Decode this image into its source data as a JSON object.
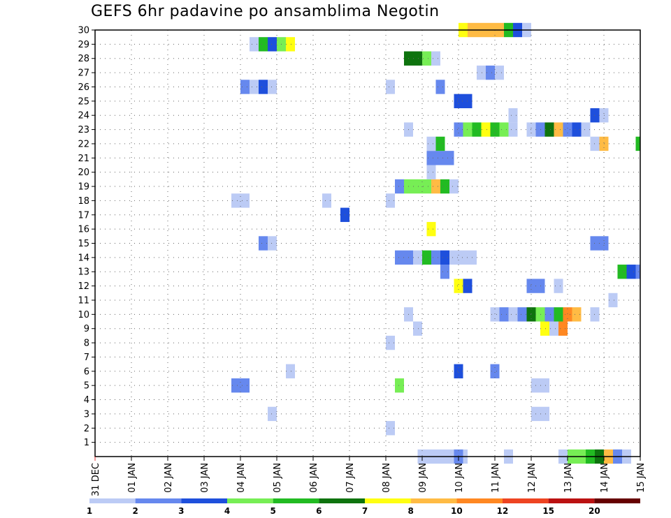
{
  "chart_data": {
    "type": "heatmap",
    "title": "GEFS 6hr padavine po ansamblima Negotin",
    "xlabel": "",
    "ylabel": "",
    "x_range": [
      "31 DEC",
      "15 JAN"
    ],
    "y_range": [
      0,
      30
    ],
    "grid": true,
    "x_ticks": [
      {
        "day": 0,
        "label": "31 DEC"
      },
      {
        "day": 1,
        "label": "01 JAN"
      },
      {
        "day": 2,
        "label": "02 JAN"
      },
      {
        "day": 3,
        "label": "03 JAN"
      },
      {
        "day": 4,
        "label": "04 JAN"
      },
      {
        "day": 5,
        "label": "05 JAN"
      },
      {
        "day": 6,
        "label": "06 JAN"
      },
      {
        "day": 7,
        "label": "07 JAN"
      },
      {
        "day": 8,
        "label": "08 JAN"
      },
      {
        "day": 9,
        "label": "09 JAN"
      },
      {
        "day": 10,
        "label": "10 JAN"
      },
      {
        "day": 11,
        "label": "11 JAN"
      },
      {
        "day": 12,
        "label": "12 JAN"
      },
      {
        "day": 13,
        "label": "13 JAN"
      },
      {
        "day": 14,
        "label": "14 JAN"
      },
      {
        "day": 15,
        "label": "15 JAN"
      }
    ],
    "y_ticks": [
      1,
      2,
      3,
      4,
      5,
      6,
      7,
      8,
      9,
      10,
      11,
      12,
      13,
      14,
      15,
      16,
      17,
      18,
      19,
      20,
      21,
      22,
      23,
      24,
      25,
      26,
      27,
      28,
      29,
      30
    ],
    "legend": {
      "placement": "bottom",
      "colors": [
        "#bccbf5",
        "#6688ee",
        "#1e4fdc",
        "#77ee55",
        "#22bb22",
        "#0e730e",
        "#ffff11",
        "#ffbb44",
        "#ff8822",
        "#ee4422",
        "#bb1111",
        "#660000"
      ],
      "labels": [
        "1",
        "2",
        "3",
        "4",
        "5",
        "6",
        "7",
        "8",
        "10",
        "12",
        "15",
        "20"
      ]
    },
    "series": [
      {
        "member": 0,
        "values": [
          [
            8.875,
            9.125,
            1
          ],
          [
            9.125,
            9.875,
            1
          ],
          [
            9.875,
            10.125,
            2
          ],
          [
            10.125,
            10.25,
            1
          ],
          [
            11.25,
            11.5,
            1
          ],
          [
            12.75,
            13,
            1
          ],
          [
            13,
            13.5,
            4
          ],
          [
            13.5,
            13.75,
            5
          ],
          [
            13.75,
            14,
            6
          ],
          [
            14,
            14.25,
            8
          ],
          [
            14.25,
            14.5,
            2
          ],
          [
            14.5,
            14.75,
            1
          ]
        ]
      },
      {
        "member": 2,
        "values": [
          [
            8,
            8.25,
            1
          ]
        ]
      },
      {
        "member": 3,
        "values": [
          [
            4.75,
            5,
            1
          ],
          [
            12,
            12.5,
            1
          ]
        ]
      },
      {
        "member": 5,
        "values": [
          [
            3.75,
            4.25,
            2
          ],
          [
            8.25,
            8.5,
            4
          ],
          [
            12,
            12.5,
            1
          ]
        ]
      },
      {
        "member": 6,
        "values": [
          [
            5.25,
            5.5,
            1
          ],
          [
            9.875,
            10.125,
            3
          ],
          [
            10.875,
            11.125,
            2
          ]
        ]
      },
      {
        "member": 8,
        "values": [
          [
            8,
            8.25,
            1
          ]
        ]
      },
      {
        "member": 9,
        "values": [
          [
            8.75,
            9,
            1
          ],
          [
            12.25,
            12.5,
            7
          ],
          [
            12.5,
            12.75,
            1
          ],
          [
            12.75,
            13,
            9
          ]
        ]
      },
      {
        "member": 10,
        "values": [
          [
            8.5,
            8.75,
            1
          ],
          [
            10.875,
            11.125,
            1
          ],
          [
            11.125,
            11.375,
            2
          ],
          [
            11.375,
            11.625,
            1
          ],
          [
            11.625,
            11.875,
            2
          ],
          [
            11.875,
            12.125,
            6
          ],
          [
            12.125,
            12.375,
            4
          ],
          [
            12.375,
            12.625,
            2
          ],
          [
            12.625,
            12.875,
            5
          ],
          [
            12.875,
            13.125,
            9
          ],
          [
            13.125,
            13.375,
            8
          ],
          [
            13.625,
            13.875,
            1
          ]
        ]
      },
      {
        "member": 11,
        "values": [
          [
            14.125,
            14.375,
            1
          ]
        ]
      },
      {
        "member": 12,
        "values": [
          [
            9.875,
            10.125,
            7
          ],
          [
            10.125,
            10.375,
            3
          ],
          [
            11.875,
            12.375,
            2
          ],
          [
            12.625,
            12.875,
            1
          ]
        ]
      },
      {
        "member": 13,
        "values": [
          [
            9.5,
            9.75,
            2
          ],
          [
            14.375,
            14.625,
            5
          ],
          [
            14.625,
            14.875,
            3
          ],
          [
            14.875,
            15,
            2
          ]
        ]
      },
      {
        "member": 14,
        "values": [
          [
            8.25,
            8.75,
            2
          ],
          [
            8.75,
            9,
            1
          ],
          [
            9,
            9.25,
            5
          ],
          [
            9.25,
            9.5,
            2
          ],
          [
            9.5,
            9.75,
            3
          ],
          [
            9.75,
            10.5,
            1
          ]
        ]
      },
      {
        "member": 15,
        "values": [
          [
            4.5,
            4.75,
            2
          ],
          [
            4.75,
            5,
            1
          ],
          [
            13.625,
            14.125,
            2
          ]
        ]
      },
      {
        "member": 16,
        "values": [
          [
            9.125,
            9.375,
            7
          ]
        ]
      },
      {
        "member": 17,
        "values": [
          [
            6.75,
            7,
            3
          ]
        ]
      },
      {
        "member": 18,
        "values": [
          [
            3.75,
            4.25,
            1
          ],
          [
            6.25,
            6.5,
            1
          ],
          [
            8,
            8.25,
            1
          ]
        ]
      },
      {
        "member": 19,
        "values": [
          [
            8.25,
            8.5,
            2
          ],
          [
            8.5,
            9.25,
            4
          ],
          [
            9.25,
            9.5,
            8
          ],
          [
            9.5,
            9.75,
            5
          ],
          [
            9.75,
            10,
            1
          ]
        ]
      },
      {
        "member": 20,
        "values": [
          [
            9.125,
            9.375,
            1
          ]
        ]
      },
      {
        "member": 21,
        "values": [
          [
            9.125,
            9.875,
            2
          ]
        ]
      },
      {
        "member": 22,
        "values": [
          [
            9.125,
            9.375,
            1
          ],
          [
            9.375,
            9.625,
            5
          ],
          [
            13.625,
            13.875,
            1
          ],
          [
            13.875,
            14.125,
            8
          ],
          [
            14.875,
            15,
            5
          ]
        ]
      },
      {
        "member": 23,
        "values": [
          [
            8.5,
            8.75,
            1
          ],
          [
            9.875,
            10.125,
            2
          ],
          [
            10.125,
            10.375,
            4
          ],
          [
            10.375,
            10.625,
            5
          ],
          [
            10.625,
            10.875,
            7
          ],
          [
            10.875,
            11.125,
            5
          ],
          [
            11.125,
            11.375,
            4
          ],
          [
            11.375,
            11.625,
            1
          ],
          [
            11.875,
            12.125,
            1
          ],
          [
            12.125,
            12.375,
            2
          ],
          [
            12.375,
            12.625,
            6
          ],
          [
            12.625,
            12.875,
            8
          ],
          [
            12.875,
            13.125,
            2
          ],
          [
            13.125,
            13.375,
            3
          ],
          [
            13.375,
            13.625,
            1
          ]
        ]
      },
      {
        "member": 24,
        "values": [
          [
            11.375,
            11.625,
            1
          ],
          [
            13.625,
            13.875,
            3
          ],
          [
            13.875,
            14.125,
            1
          ]
        ]
      },
      {
        "member": 25,
        "values": [
          [
            9.875,
            10.375,
            3
          ]
        ]
      },
      {
        "member": 26,
        "values": [
          [
            4,
            4.25,
            2
          ],
          [
            4.25,
            4.5,
            1
          ],
          [
            4.5,
            4.75,
            3
          ],
          [
            4.75,
            5,
            1
          ],
          [
            8,
            8.25,
            1
          ],
          [
            9.375,
            9.625,
            2
          ]
        ]
      },
      {
        "member": 27,
        "values": [
          [
            10.5,
            10.75,
            1
          ],
          [
            10.75,
            11,
            2
          ],
          [
            11,
            11.25,
            1
          ]
        ]
      },
      {
        "member": 28,
        "values": [
          [
            8.5,
            9,
            6
          ],
          [
            9,
            9.25,
            4
          ],
          [
            9.25,
            9.5,
            1
          ]
        ]
      },
      {
        "member": 29,
        "values": [
          [
            4.25,
            4.5,
            1
          ],
          [
            4.5,
            4.75,
            5
          ],
          [
            4.75,
            5,
            3
          ],
          [
            5,
            5.25,
            4
          ],
          [
            5.25,
            5.5,
            7
          ]
        ]
      },
      {
        "member": 30,
        "values": [
          [
            10,
            10.25,
            7
          ],
          [
            10.25,
            11.25,
            8
          ],
          [
            11.25,
            11.5,
            5
          ],
          [
            11.5,
            11.75,
            3
          ],
          [
            11.75,
            12,
            1
          ]
        ]
      }
    ]
  }
}
